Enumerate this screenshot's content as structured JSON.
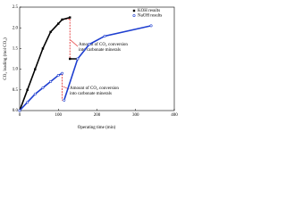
{
  "chart_data": {
    "type": "line",
    "xlabel": "Operating time (min)",
    "ylabel": "CO₂ loading (mol CO₂)",
    "annotations": [
      [
        "Amount of CO₂ conversion",
        "into carbonate minerals"
      ],
      [
        "Amount of CO₂ conversion",
        "into carbonate minerals"
      ]
    ],
    "series": [
      {
        "name": "KOH results",
        "color": "#000000",
        "marker": "square",
        "x": [
          0,
          20,
          40,
          60,
          80,
          100,
          110,
          130,
          130,
          130,
          150
        ],
        "values": [
          0,
          0.5,
          1.0,
          1.5,
          1.9,
          2.1,
          2.2,
          2.25,
          null,
          1.25,
          1.25
        ]
      },
      {
        "name": "NaOH results",
        "color": "#1f3fd0",
        "marker": "circle",
        "x": [
          0,
          20,
          40,
          60,
          80,
          100,
          110,
          110,
          115,
          150,
          180,
          220,
          340
        ],
        "values": [
          0,
          0.2,
          0.4,
          0.55,
          0.7,
          0.85,
          0.9,
          null,
          0.25,
          1.25,
          1.6,
          1.8,
          2.05
        ]
      }
    ],
    "xlim": [
      0,
      400
    ],
    "xticks": [
      0,
      100,
      200,
      300,
      400
    ],
    "ylim": [
      0,
      2.5
    ],
    "yticks": [
      {
        "value": 0,
        "label": "0.0"
      },
      {
        "value": 0.5,
        "label": "0.5"
      },
      {
        "value": 1,
        "label": "1.0"
      },
      {
        "value": 1.5,
        "label": "1.5"
      },
      {
        "value": 2,
        "label": "2.0"
      },
      {
        "value": 2.5,
        "label": "2.5"
      }
    ],
    "legend": "upper right"
  }
}
